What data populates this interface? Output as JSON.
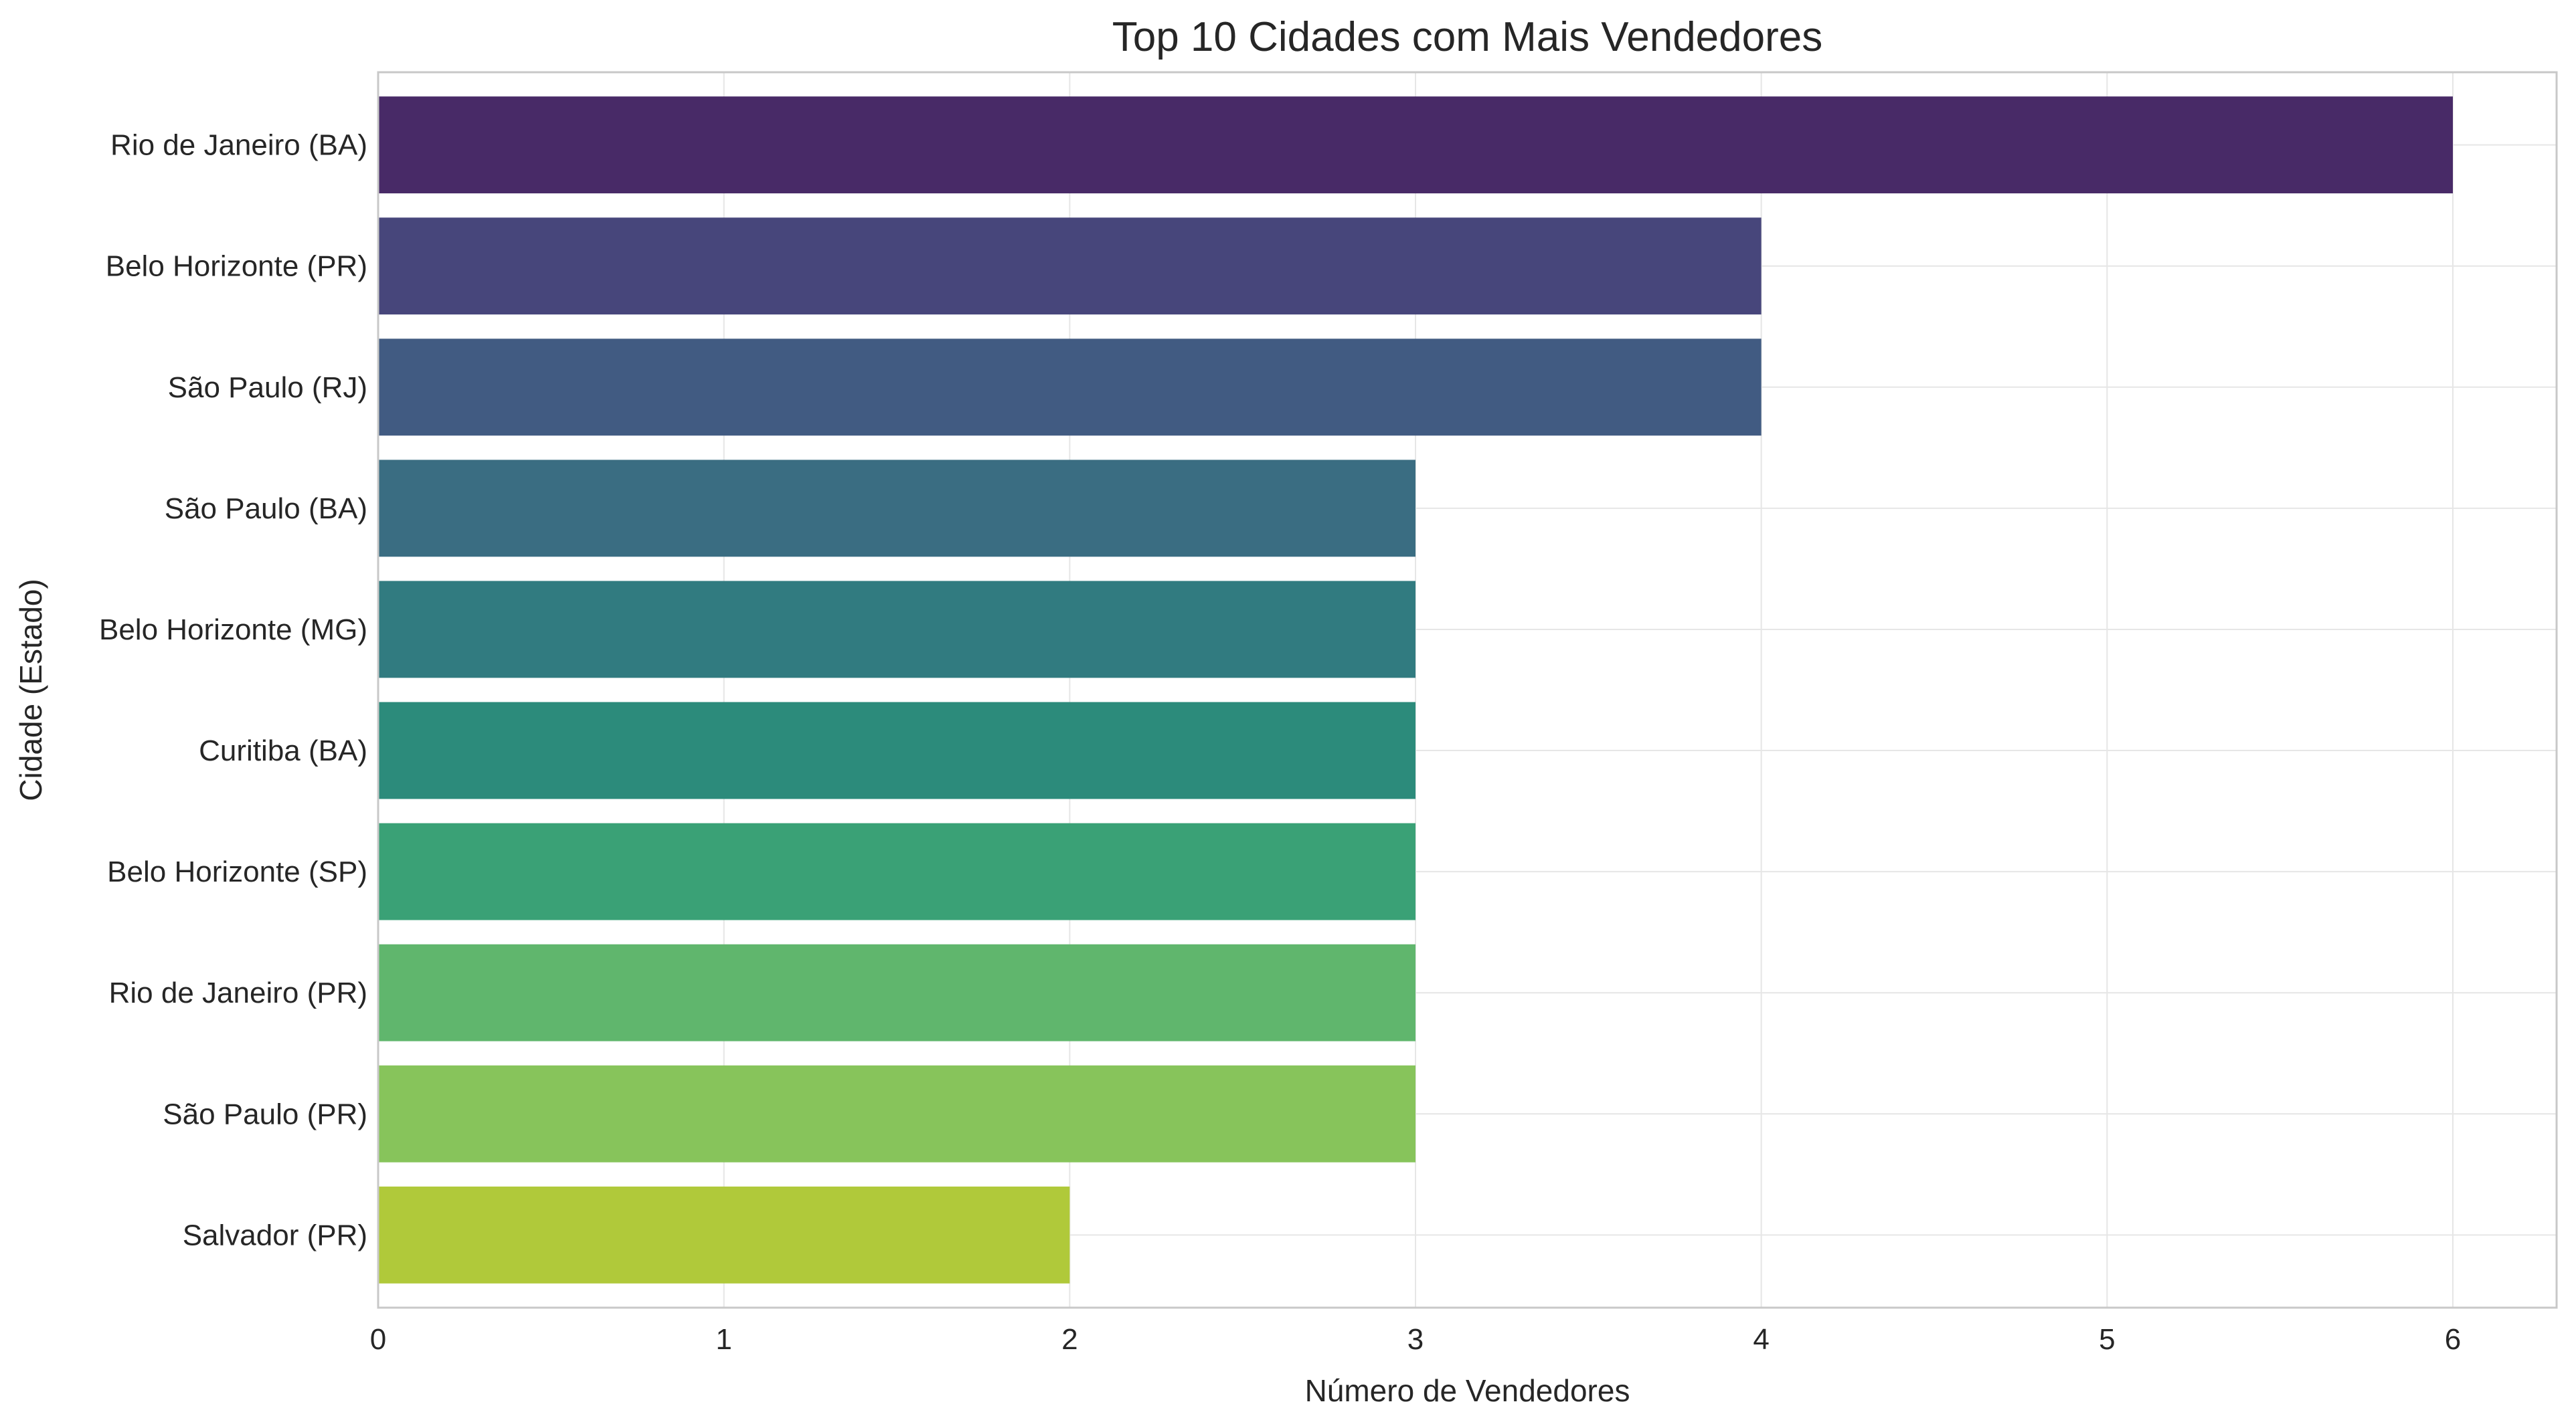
{
  "chart_data": {
    "type": "bar",
    "orientation": "horizontal",
    "title": "Top 10 Cidades com Mais Vendedores",
    "xlabel": "Número de Vendedores",
    "ylabel": "Cidade (Estado)",
    "xlim": [
      0,
      6.3
    ],
    "xticks": [
      "0",
      "1",
      "2",
      "3",
      "4",
      "5",
      "6"
    ],
    "grid": true,
    "categories": [
      "Rio de Janeiro (BA)",
      "Belo Horizonte (PR)",
      "São Paulo (RJ)",
      "São Paulo (BA)",
      "Belo Horizonte (MG)",
      "Curitiba (BA)",
      "Belo Horizonte (SP)",
      "Rio de Janeiro (PR)",
      "São Paulo (PR)",
      "Salvador (PR)"
    ],
    "values": [
      6,
      4,
      4,
      3,
      3,
      3,
      3,
      3,
      3,
      2
    ],
    "colors": [
      "#482a67",
      "#47467b",
      "#415b82",
      "#3a6d82",
      "#317b80",
      "#2c8b7b",
      "#3aa176",
      "#60b66d",
      "#87c45b",
      "#b0c93a"
    ]
  }
}
